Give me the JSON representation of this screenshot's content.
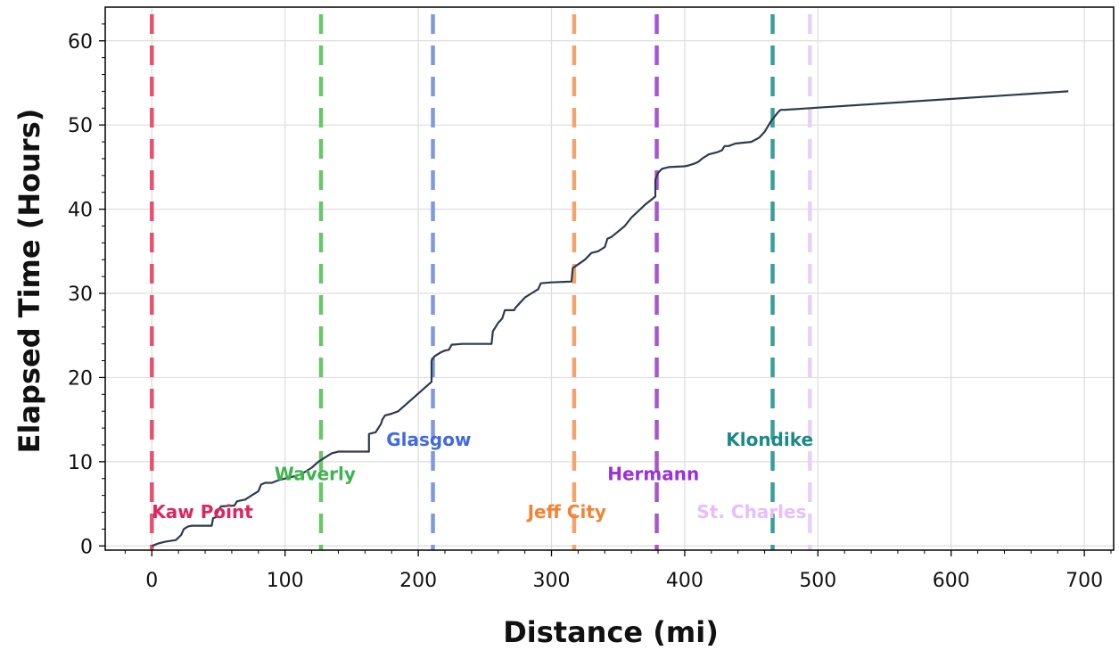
{
  "chart_data": {
    "type": "line",
    "title": "",
    "xlabel": "Distance (mi)",
    "ylabel": "Elapsed Time (Hours)",
    "xlim": [
      -35,
      722
    ],
    "ylim": [
      -0.5,
      64
    ],
    "xticks": [
      0,
      100,
      200,
      300,
      400,
      500,
      600,
      700
    ],
    "yticks": [
      0,
      10,
      20,
      30,
      40,
      50,
      60
    ],
    "grid": true,
    "legend": "none",
    "series": [
      {
        "color": "#2d3a4e",
        "x": [
          0,
          5,
          10,
          18,
          22,
          24,
          27,
          30,
          45,
          46,
          48,
          50,
          52,
          62,
          64,
          70,
          75,
          80,
          82,
          85,
          90,
          95,
          100,
          105,
          112,
          120,
          125,
          130,
          135,
          140,
          163,
          163,
          168,
          172,
          173,
          175,
          180,
          185,
          210,
          210,
          212,
          217,
          220,
          223,
          225,
          233,
          255,
          256,
          258,
          260,
          263,
          265,
          272,
          273,
          280,
          285,
          290,
          292,
          300,
          315,
          316,
          325,
          330,
          335,
          338,
          340,
          342,
          345,
          355,
          360,
          370,
          378,
          378,
          380,
          383,
          388,
          400,
          403,
          407,
          410,
          413,
          418,
          425,
          428,
          430,
          433,
          438,
          450,
          456,
          460,
          465,
          470,
          472,
          475,
          494,
          688
        ],
        "y": [
          0,
          0.3,
          0.5,
          0.7,
          1.3,
          2.0,
          2.3,
          2.4,
          2.4,
          3.3,
          3.4,
          4.3,
          4.7,
          4.8,
          5.3,
          5.5,
          6.0,
          6.5,
          7.3,
          7.5,
          7.5,
          7.8,
          8.0,
          8.2,
          8.5,
          9.3,
          10.0,
          10.5,
          11.0,
          11.2,
          11.2,
          13.3,
          13.5,
          14.5,
          15.0,
          15.5,
          15.7,
          16.0,
          19.5,
          22.0,
          22.5,
          23.0,
          23.2,
          23.3,
          23.9,
          24.0,
          24.0,
          25.5,
          26.0,
          26.5,
          27.0,
          28.0,
          28.0,
          28.3,
          29.5,
          30.0,
          30.5,
          31.2,
          31.3,
          31.4,
          33.0,
          34.0,
          34.8,
          35.0,
          35.3,
          35.5,
          36.5,
          36.7,
          38.0,
          39.0,
          40.5,
          41.5,
          43.5,
          44.3,
          44.8,
          45.0,
          45.1,
          45.2,
          45.4,
          45.6,
          46.0,
          46.5,
          46.8,
          47.0,
          47.5,
          47.5,
          47.8,
          48.0,
          48.5,
          49.2,
          50.5,
          51.5,
          51.8,
          51.8,
          52.0,
          54.0
        ]
      }
    ],
    "checkpoints": [
      {
        "name": "Kaw Point",
        "mile": 0,
        "label_x": 0,
        "label_y": 3.3,
        "color": "#e8506e",
        "label_color": "#e0245e"
      },
      {
        "name": "Waverly",
        "mile": 127,
        "label_x": 92,
        "label_y": 7.8,
        "color": "#69c66b",
        "label_color": "#3cb44b"
      },
      {
        "name": "Glasgow",
        "mile": 211,
        "label_x": 176,
        "label_y": 11.9,
        "color": "#7f98e0",
        "label_color": "#4169e1"
      },
      {
        "name": "Jeff City",
        "mile": 317,
        "label_x": 282,
        "label_y": 3.3,
        "color": "#f5a36e",
        "label_color": "#f58231"
      },
      {
        "name": "Hermann",
        "mile": 379,
        "label_x": 342,
        "label_y": 7.8,
        "color": "#a855d0",
        "label_color": "#9b30d9"
      },
      {
        "name": "Klondike",
        "mile": 466,
        "label_x": 431,
        "label_y": 11.9,
        "color": "#3a9e9a",
        "label_color": "#1a8a85"
      },
      {
        "name": "St. Charles",
        "mile": 494,
        "label_x": 409,
        "label_y": 3.3,
        "color": "#e8d0f8",
        "label_color": "#e6beff"
      }
    ]
  }
}
